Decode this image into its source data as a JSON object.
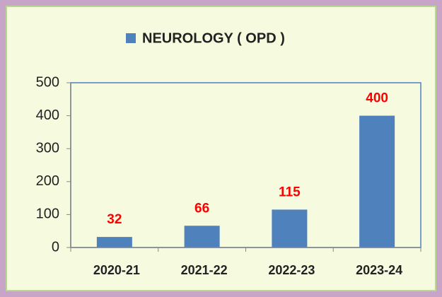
{
  "chart_data": {
    "type": "bar",
    "categories": [
      "2020-21",
      "2021-22",
      "2022-23",
      "2023-24"
    ],
    "series": [
      {
        "name": "NEUROLOGY ( OPD )",
        "color": "#4f81bd",
        "values": [
          32,
          66,
          115,
          400
        ]
      }
    ],
    "ylim": [
      0,
      500
    ],
    "yticks": [
      0,
      100,
      200,
      300,
      400,
      500
    ],
    "grid": false,
    "legend": "top",
    "label_color": "#ff0000",
    "plot_border_color": "#4f81bd"
  }
}
